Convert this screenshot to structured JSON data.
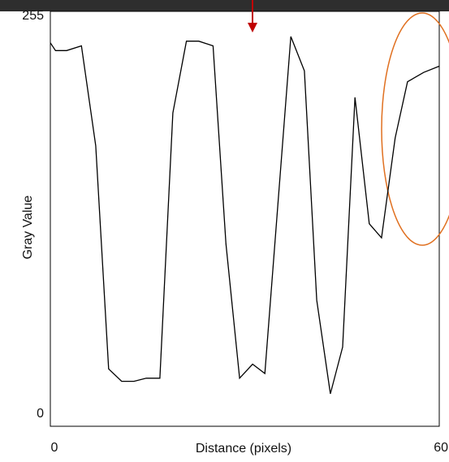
{
  "chart_data": {
    "type": "line",
    "xlabel": "Distance (pixels)",
    "ylabel": "Gray Value",
    "x": [
      0,
      0.8,
      2.5,
      4.8,
      7.0,
      9.0,
      11.0,
      12.9,
      14.8,
      16.9,
      18.9,
      21.0,
      22.9,
      25.1,
      27.1,
      29.2,
      31.2,
      33.1,
      37.1,
      39.2,
      41.1,
      43.2,
      45.1,
      47.0,
      49.2,
      51.1,
      53.2,
      55.1,
      57.6,
      60
    ],
    "values": [
      238,
      233,
      233,
      236,
      172,
      29,
      21,
      21,
      23,
      23,
      193,
      239,
      239,
      236,
      109,
      23,
      32,
      26,
      242,
      220,
      73,
      13,
      43,
      203,
      122,
      113,
      177,
      213,
      219,
      223
    ],
    "color": "#000000",
    "xlim": [
      0,
      60
    ],
    "xticks": [
      0,
      60
    ],
    "ylim": [
      0,
      255
    ],
    "yticks": [
      0,
      255
    ],
    "grid": false
  }
}
